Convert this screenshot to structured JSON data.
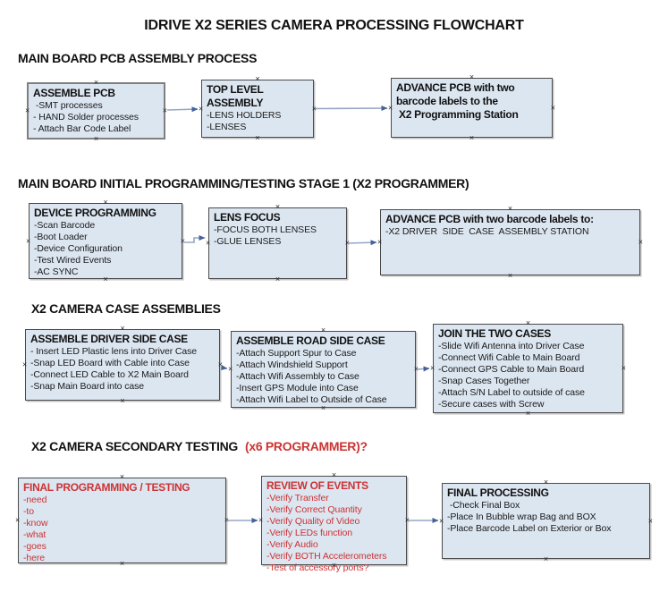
{
  "title": "IDRIVE X2  SERIES CAMERA PROCESSING FLOWCHART",
  "colors": {
    "box_fill": "#dce6f1",
    "box_border": "#4a4a4a",
    "connector_line": "#95a6c2",
    "connector_arrowhead": "#44619b",
    "alert_red": "#cc3333"
  },
  "markers": {
    "connection_point": "×"
  },
  "sections": [
    {
      "heading": "MAIN BOARD PCB ASSEMBLY PROCESS",
      "boxes": [
        {
          "title": "ASSEMBLE PCB",
          "items": [
            " -SMT processes",
            "- HAND Solder processes",
            "- Attach Bar Code Label"
          ]
        },
        {
          "title": "TOP LEVEL ASSEMBLY",
          "items": [
            "-LENS HOLDERS",
            "-LENSES"
          ]
        },
        {
          "title": "ADVANCE PCB with two\nbarcode labels to the\n X2 Programming Station",
          "items": []
        }
      ]
    },
    {
      "heading": "MAIN BOARD INITIAL PROGRAMMING/TESTING STAGE 1 (X2 PROGRAMMER)",
      "boxes": [
        {
          "title": "DEVICE PROGRAMMING",
          "items": [
            "-Scan Barcode",
            "-Boot Loader",
            "-Device Configuration",
            "-Test Wired Events",
            "-AC SYNC"
          ]
        },
        {
          "title": "LENS FOCUS",
          "items": [
            "-FOCUS BOTH LENSES",
            "-GLUE LENSES"
          ]
        },
        {
          "title": "ADVANCE PCB with two barcode labels to:",
          "items": [
            "-X2 DRIVER  SIDE  CASE  ASSEMBLY STATION"
          ]
        }
      ]
    },
    {
      "heading": "X2 CAMERA CASE ASSEMBLIES",
      "boxes": [
        {
          "title": "ASSEMBLE DRIVER SIDE CASE",
          "items": [
            "- Insert LED Plastic lens into Driver Case",
            "-Snap LED Board with Cable into Case",
            "-Connect LED Cable to X2 Main Board",
            "-Snap Main Board into case"
          ]
        },
        {
          "title": "ASSEMBLE ROAD SIDE CASE",
          "items": [
            "-Attach Support Spur to Case",
            "-Attach Windshield Support",
            "-Attach Wifi Assembly to Case",
            "-Insert GPS Module into Case",
            "-Attach Wifi Label to Outside of Case"
          ]
        },
        {
          "title": "JOIN THE TWO CASES",
          "items": [
            "-Slide Wifi Antenna into Driver Case",
            "-Connect Wifi Cable to Main Board",
            "-Connect GPS Cable to Main Board",
            "-Snap Cases Together",
            "-Attach S/N Label to outside of case",
            "-Secure cases with Screw"
          ]
        }
      ]
    },
    {
      "heading": "X2 CAMERA SECONDARY TESTING",
      "heading_suffix": "(x6 PROGRAMMER)?",
      "boxes": [
        {
          "title": "FINAL PROGRAMMING / TESTING",
          "text_color": "#cc3333",
          "items": [
            "-need",
            "-to",
            "-know",
            "-what",
            "-goes",
            "-here"
          ]
        },
        {
          "title": "REVIEW OF EVENTS",
          "text_color": "#cc3333",
          "items": [
            "-Verify Transfer",
            "-Verify Correct Quantity",
            "-Verify Quality of Video",
            "-Verify LEDs function",
            "-Verify Audio",
            "-Verify BOTH Accelerometers",
            "-Test of accessory ports?"
          ]
        },
        {
          "title": "FINAL PROCESSING",
          "items": [
            " -Check Final Box",
            "-Place In Bubble wrap Bag and BOX",
            "-Place Barcode Label on Exterior or Box"
          ]
        }
      ]
    }
  ]
}
